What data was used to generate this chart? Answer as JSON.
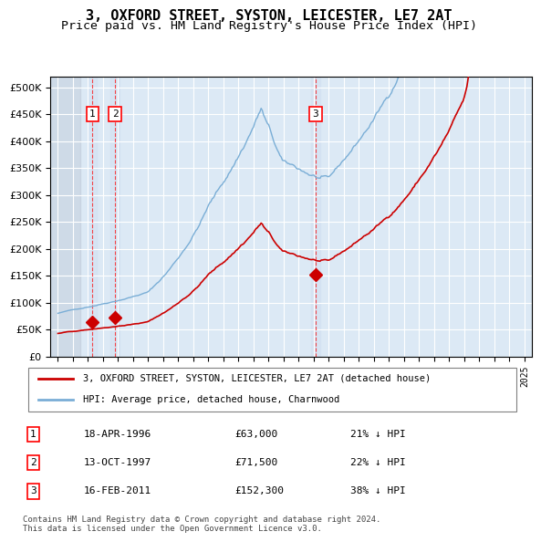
{
  "title": "3, OXFORD STREET, SYSTON, LEICESTER, LE7 2AT",
  "subtitle": "Price paid vs. HM Land Registry's House Price Index (HPI)",
  "title_fontsize": 11,
  "subtitle_fontsize": 9.5,
  "background_color": "#dce9f5",
  "plot_bg_color": "#dce9f5",
  "grid_color": "#ffffff",
  "hpi_color": "#7aaed6",
  "price_color": "#cc0000",
  "sale_marker_color": "#cc0000",
  "transactions": [
    {
      "label": "1",
      "date_num": 1996.29,
      "price": 63000
    },
    {
      "label": "2",
      "date_num": 1997.79,
      "price": 71500
    },
    {
      "label": "3",
      "date_num": 2011.12,
      "price": 152300
    }
  ],
  "legend_line1": "3, OXFORD STREET, SYSTON, LEICESTER, LE7 2AT (detached house)",
  "legend_line2": "HPI: Average price, detached house, Charnwood",
  "table_rows": [
    {
      "num": "1",
      "date": "18-APR-1996",
      "price": "£63,000",
      "pct": "21% ↓ HPI"
    },
    {
      "num": "2",
      "date": "13-OCT-1997",
      "price": "£71,500",
      "pct": "22% ↓ HPI"
    },
    {
      "num": "3",
      "date": "16-FEB-2011",
      "price": "£152,300",
      "pct": "38% ↓ HPI"
    }
  ],
  "footnote": "Contains HM Land Registry data © Crown copyright and database right 2024.\nThis data is licensed under the Open Government Licence v3.0.",
  "ylim": [
    0,
    520000
  ],
  "yticks": [
    0,
    50000,
    100000,
    150000,
    200000,
    250000,
    300000,
    350000,
    400000,
    450000,
    500000
  ],
  "xlim": [
    1993.5,
    2025.5
  ],
  "xticks": [
    1994,
    1995,
    1996,
    1997,
    1998,
    1999,
    2000,
    2001,
    2002,
    2003,
    2004,
    2005,
    2006,
    2007,
    2008,
    2009,
    2010,
    2011,
    2012,
    2013,
    2014,
    2015,
    2016,
    2017,
    2018,
    2019,
    2020,
    2021,
    2022,
    2023,
    2024,
    2025
  ],
  "hatch_color": "#c0c8d8"
}
